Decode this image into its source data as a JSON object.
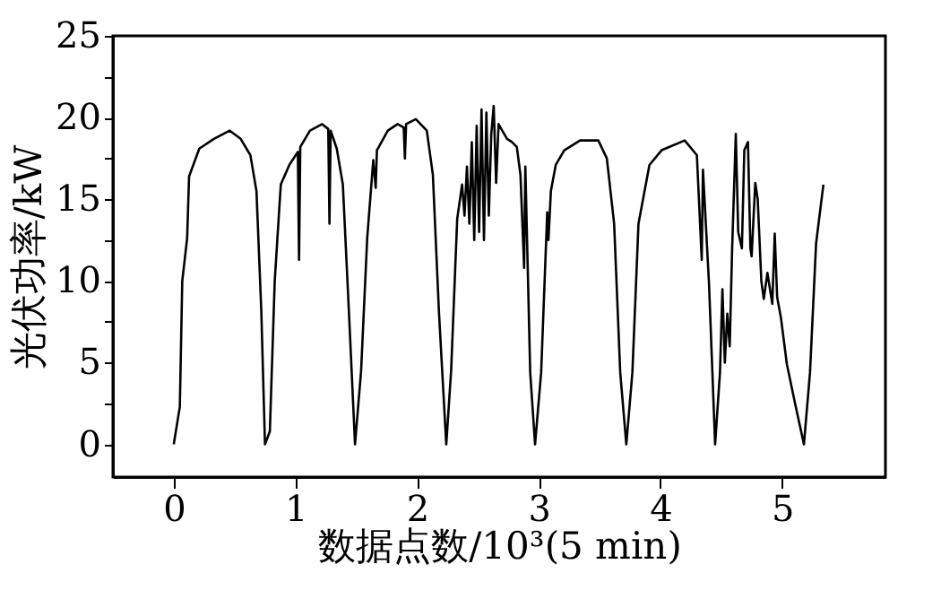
{
  "chart_data": {
    "type": "line",
    "xlabel": "数据点数/10³(5 min)",
    "ylabel": "光伏功率/kW",
    "x": [
      0.0,
      0.05,
      0.07,
      0.11,
      0.126,
      0.21,
      0.33,
      0.46,
      0.55,
      0.63,
      0.68,
      0.72,
      0.75,
      0.79,
      0.83,
      0.88,
      0.95,
      1.02,
      1.03,
      1.04,
      1.12,
      1.22,
      1.27,
      1.28,
      1.29,
      1.34,
      1.39,
      1.44,
      1.49,
      1.54,
      1.59,
      1.64,
      1.66,
      1.67,
      1.76,
      1.84,
      1.89,
      1.9,
      1.91,
      1.99,
      2.08,
      2.13,
      2.18,
      2.24,
      2.28,
      2.33,
      2.37,
      2.39,
      2.41,
      2.43,
      2.45,
      2.47,
      2.49,
      2.51,
      2.53,
      2.55,
      2.57,
      2.59,
      2.61,
      2.63,
      2.65,
      2.67,
      2.7,
      2.74,
      2.78,
      2.82,
      2.85,
      2.88,
      2.89,
      2.93,
      2.97,
      3.02,
      3.07,
      3.08,
      3.1,
      3.14,
      3.21,
      3.34,
      3.49,
      3.56,
      3.62,
      3.67,
      3.72,
      3.77,
      3.82,
      3.91,
      4.01,
      4.2,
      4.3,
      4.34,
      4.35,
      4.4,
      4.45,
      4.49,
      4.51,
      4.53,
      4.55,
      4.57,
      4.59,
      4.62,
      4.64,
      4.67,
      4.69,
      4.72,
      4.74,
      4.75,
      4.78,
      4.8,
      4.83,
      4.85,
      4.88,
      4.92,
      4.94,
      4.96,
      4.99,
      5.04,
      5.11,
      5.18,
      5.23,
      5.28,
      5.34
    ],
    "series": [
      {
        "color": "#000000",
        "values": [
          0,
          2.3,
          10,
          12.6,
          16.4,
          18.1,
          18.7,
          19.2,
          18.7,
          17.7,
          15.5,
          8.1,
          0,
          0.8,
          10,
          15.9,
          17.1,
          17.9,
          11.3,
          18.2,
          19.2,
          19.6,
          19.3,
          13.5,
          19.2,
          18.1,
          15.9,
          8.1,
          0,
          4.5,
          12.6,
          17.4,
          15.7,
          18,
          19.2,
          19.6,
          19.4,
          17.5,
          19.6,
          19.9,
          19.2,
          16.5,
          8.1,
          0,
          4.5,
          13.8,
          15.9,
          14,
          17,
          13.5,
          18.5,
          12.5,
          19.5,
          13,
          20.5,
          12.5,
          20.3,
          14,
          19,
          20.7,
          16,
          19.6,
          19.2,
          18.7,
          18.5,
          18.2,
          16.5,
          10.8,
          17,
          4.4,
          0,
          4.4,
          14.2,
          12.5,
          15.5,
          17.1,
          18,
          18.6,
          18.6,
          17.5,
          13.5,
          4.4,
          0,
          4.4,
          13.5,
          17.1,
          18,
          18.6,
          17.7,
          11.3,
          16.8,
          9.8,
          0,
          4.4,
          9.5,
          5,
          8,
          6,
          12,
          19,
          13,
          12,
          18,
          18.5,
          12,
          11.5,
          16,
          15,
          10,
          8.9,
          10.5,
          8.6,
          12.9,
          9,
          7.8,
          4.9,
          2.4,
          0,
          4.4,
          12.3,
          15.9
        ]
      }
    ],
    "xlim": [
      -0.5,
      5.85
    ],
    "ylim": [
      -2,
      25
    ],
    "xticks": [
      0,
      1,
      2,
      3,
      4,
      5
    ],
    "yticks": [
      0,
      {
        "value": 2.5,
        "label": null
      },
      5,
      {
        "value": 7.5,
        "label": null
      },
      10,
      {
        "value": 12.5,
        "label": null
      },
      15,
      {
        "value": 17.5,
        "label": null
      },
      20,
      {
        "value": 22.5,
        "label": null
      },
      25
    ],
    "grid": false,
    "marker": "none",
    "line_style": "solid"
  }
}
